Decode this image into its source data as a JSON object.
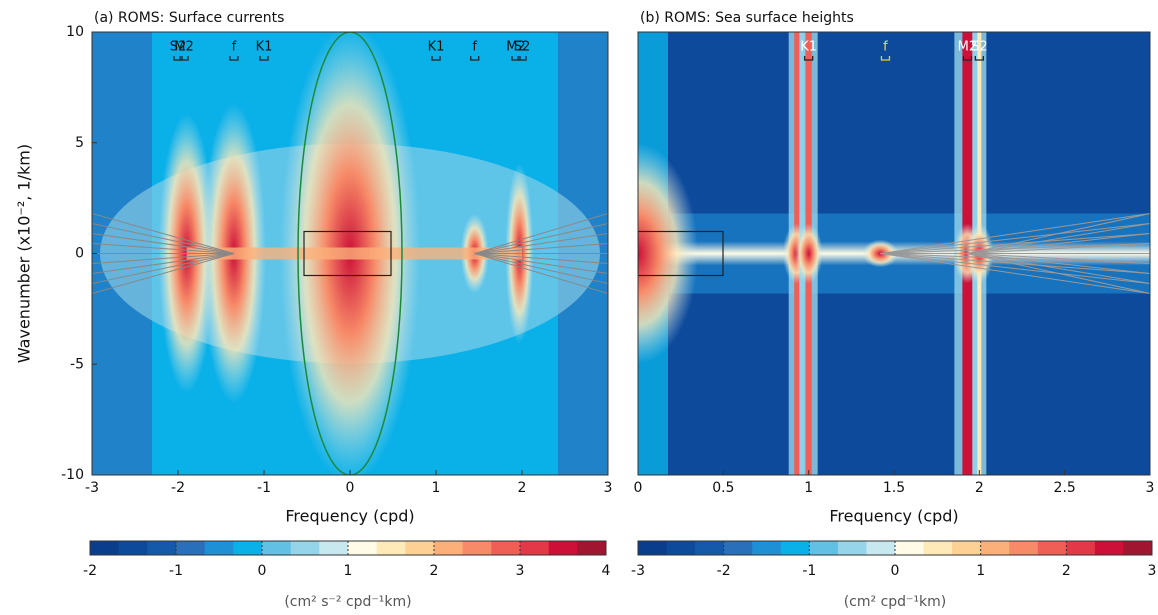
{
  "chart_data": [
    {
      "type": "heatmap",
      "title": "(a) ROMS: Surface currents",
      "x_label": "Frequency (cpd)",
      "y_label": "Wavenumber (x10⁻², 1/km)",
      "xlim": [
        -3,
        3
      ],
      "xticks": [
        -3,
        -2,
        -1,
        0,
        1,
        2,
        3
      ],
      "ylim": [
        -10,
        10
      ],
      "yticks": [
        -10,
        -5,
        0,
        5,
        10
      ],
      "annotations": [
        {
          "text": "S2",
          "x": -2.0
        },
        {
          "text": "M2",
          "x": -1.93
        },
        {
          "text": "f",
          "x": -1.35
        },
        {
          "text": "K1",
          "x": -1.0
        },
        {
          "text": "K1",
          "x": 1.0
        },
        {
          "text": "f",
          "x": 1.45
        },
        {
          "text": "M2",
          "x": 1.93
        },
        {
          "text": "S2",
          "x": 2.0
        }
      ],
      "colorbar": {
        "lim": [
          -2,
          4
        ],
        "ticks": [
          -2,
          -1,
          0,
          1,
          2,
          3,
          4
        ],
        "label": "(cm² s⁻² cpd⁻¹km)",
        "colors": [
          "#0a3e8c",
          "#0d4a9c",
          "#1559ab",
          "#2a6fba",
          "#1e90d6",
          "#0ab0e8",
          "#62c0e4",
          "#96d4ea",
          "#c8e8f0",
          "#fffbe6",
          "#fee9b8",
          "#fdd194",
          "#fbb07a",
          "#f78a68",
          "#ef5f56",
          "#e23848",
          "#cc1038",
          "#a01530"
        ]
      }
    },
    {
      "type": "heatmap",
      "title": "(b) ROMS: Sea surface heights",
      "x_label": "Frequency (cpd)",
      "xlim": [
        0,
        3
      ],
      "xticks": [
        0,
        0.5,
        1,
        1.5,
        2,
        2.5,
        3
      ],
      "ylim": [
        -10,
        10
      ],
      "annotations": [
        {
          "text": "K1",
          "x": 1.0
        },
        {
          "text": "f",
          "x": 1.45
        },
        {
          "text": "M2",
          "x": 1.93
        },
        {
          "text": "S2",
          "x": 2.0
        }
      ],
      "colorbar": {
        "lim": [
          -3,
          3
        ],
        "ticks": [
          -3,
          -2,
          -1,
          0,
          1,
          2,
          3
        ],
        "label": "(cm² cpd⁻¹km)",
        "colors": [
          "#0a3e8c",
          "#0d4a9c",
          "#1559ab",
          "#2a6fba",
          "#1e90d6",
          "#0ab0e8",
          "#62c0e4",
          "#96d4ea",
          "#c8e8f0",
          "#fffbe6",
          "#fee9b8",
          "#fdd194",
          "#fbb07a",
          "#f78a68",
          "#ef5f56",
          "#e23848",
          "#cc1038",
          "#a01530"
        ]
      }
    }
  ]
}
